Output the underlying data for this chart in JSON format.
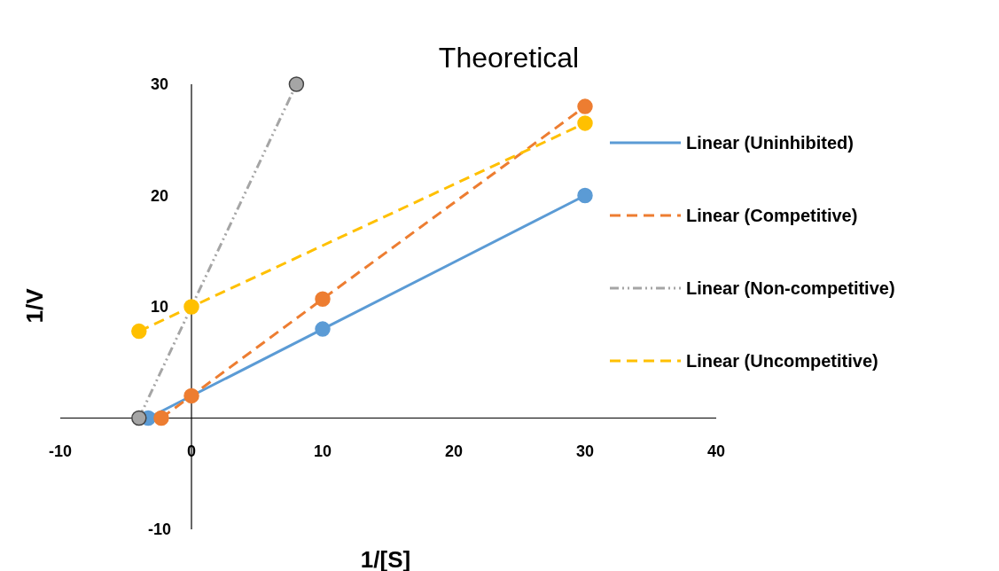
{
  "chart_data": {
    "type": "line",
    "title": "Theoretical",
    "xlabel": "1/[S]",
    "ylabel": "1/V",
    "xlim": [
      -10,
      40
    ],
    "ylim": [
      -10,
      30
    ],
    "xticks": [
      -10,
      0,
      10,
      20,
      30,
      40
    ],
    "yticks": [
      -10,
      10,
      20,
      30
    ],
    "grid": false,
    "legend": "right",
    "marker": "circle",
    "series": [
      {
        "name": "Linear (Uninhibited)",
        "color": "#5b9bd5",
        "line_style": "solid",
        "x": [
          -3.3,
          0,
          10,
          30
        ],
        "values": [
          0,
          null,
          8,
          20
        ]
      },
      {
        "name": "Linear (Competitive)",
        "color": "#ed7d31",
        "line_style": "dashed",
        "x": [
          -2.3,
          0,
          10,
          30
        ],
        "values": [
          0,
          2,
          10.7,
          28
        ]
      },
      {
        "name": "Linear (Non-competitive)",
        "color": "#a5a5a5",
        "line_style": "dotted",
        "x": [
          -4,
          8
        ],
        "values": [
          0,
          30
        ]
      },
      {
        "name": "Linear (Uncompetitive)",
        "color": "#ffc000",
        "line_style": "dashed",
        "x": [
          -4,
          0,
          30
        ],
        "values": [
          7.8,
          10,
          26.5
        ]
      }
    ]
  }
}
